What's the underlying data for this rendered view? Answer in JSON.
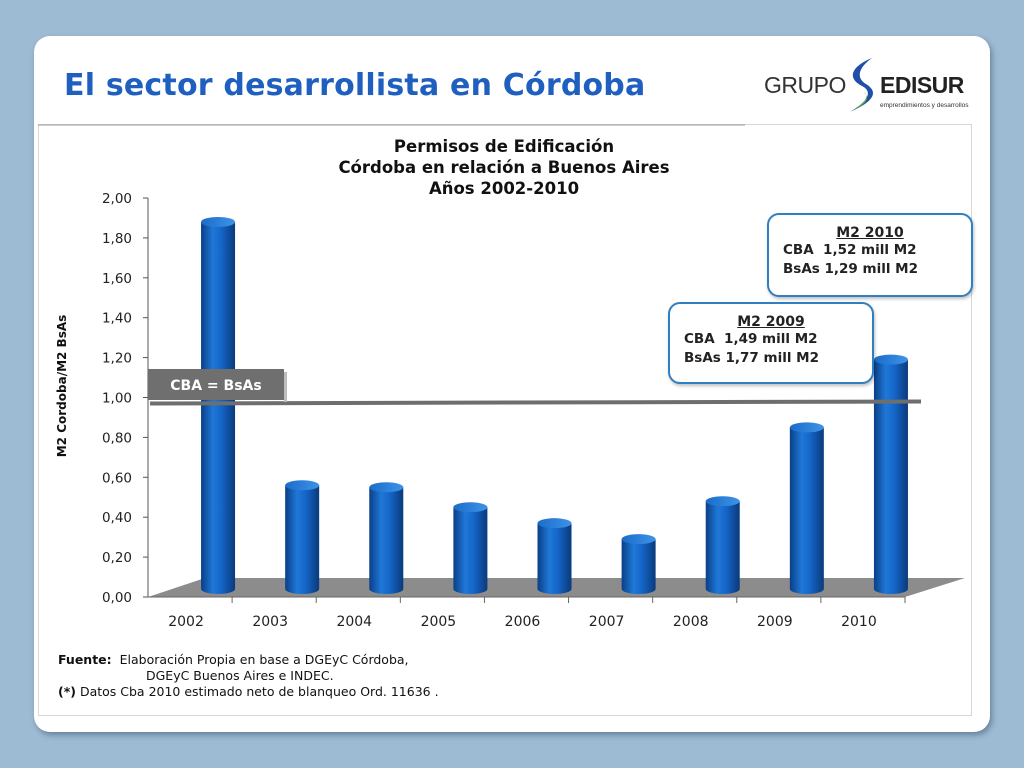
{
  "slide": {
    "title": "El sector desarrollista en Córdoba"
  },
  "logo": {
    "grupo": "GRUPO",
    "edisur": "EDISUR",
    "tagline": "emprendimientos y desarrollos",
    "accent": "#1f4fa8",
    "accent2": "#66b32e"
  },
  "chart_data": {
    "type": "bar",
    "title_lines": [
      "Permisos de Edificación",
      "Córdoba en relación a Buenos Aires",
      "Años 2002-2010"
    ],
    "ylabel": "M2 Cordoba/M2 BsAs",
    "xlabel": "",
    "categories": [
      "2002",
      "2003",
      "2004",
      "2005",
      "2006",
      "2007",
      "2008",
      "2009",
      "2010"
    ],
    "values": [
      1.88,
      0.56,
      0.55,
      0.45,
      0.37,
      0.29,
      0.48,
      0.85,
      1.19
    ],
    "ylim": [
      0,
      2
    ],
    "yticks": [
      "0,00",
      "0,20",
      "0,40",
      "0,60",
      "0,80",
      "1,00",
      "1,20",
      "1,40",
      "1,60",
      "1,80",
      "2,00"
    ],
    "reference_line": {
      "value": 0.98,
      "label": "CBA = BsAs"
    },
    "bar_color": "#1565c8",
    "grid": false,
    "legend": "none"
  },
  "callouts": {
    "m2_2009": {
      "heading": "M2 2009",
      "line1": "CBA  1,49 mill M2",
      "line2": "BsAs 1,77 mill M2"
    },
    "m2_2010": {
      "heading": "M2 2010",
      "line1": "CBA  1,52 mill M2",
      "line2": "BsAs 1,29 mill M2"
    }
  },
  "source": {
    "label": "Fuente:",
    "line1": "Elaboración Propia en base a DGEyC Córdoba,",
    "line2": "DGEyC Buenos Aires e INDEC.",
    "note_label": "(*)",
    "note": "Datos Cba 2010 estimado neto de blanqueo Ord. 11636 ."
  }
}
